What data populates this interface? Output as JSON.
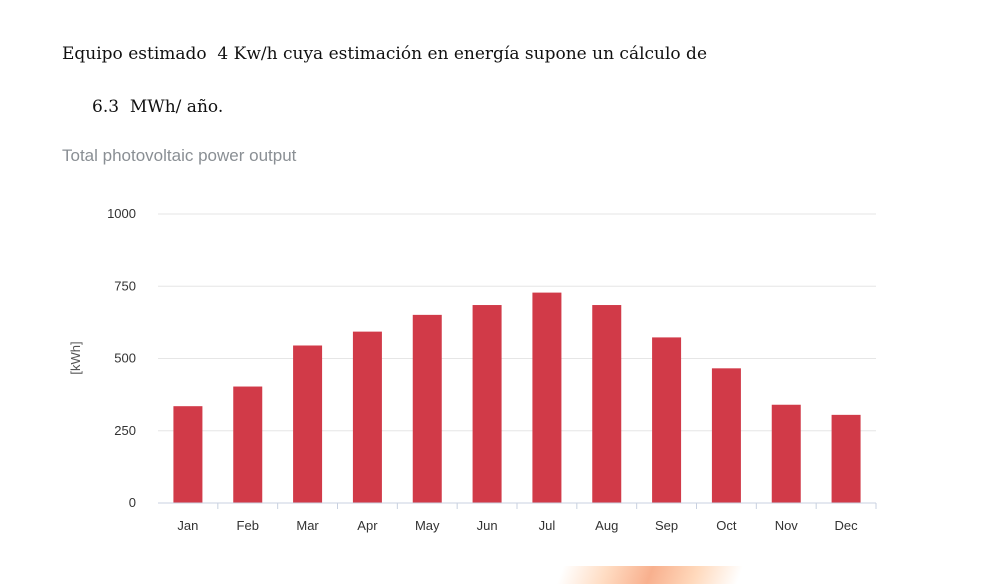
{
  "document": {
    "line1": "Equipo estimado  4 Kw/h cuya estimación en energía supone un cálculo de",
    "line2": "6.3  MWh/ año."
  },
  "chart_data": {
    "type": "bar",
    "title": "Total photovoltaic power output",
    "xlabel": "",
    "ylabel": "[kWh]",
    "categories": [
      "Jan",
      "Feb",
      "Mar",
      "Apr",
      "May",
      "Jun",
      "Jul",
      "Aug",
      "Sep",
      "Oct",
      "Nov",
      "Dec"
    ],
    "values": [
      335,
      403,
      545,
      593,
      651,
      685,
      728,
      685,
      573,
      466,
      340,
      305
    ],
    "ylim": [
      0,
      1000
    ],
    "yticks": [
      "0",
      "250",
      "500",
      "750",
      "1000"
    ],
    "grid": true,
    "bar_color": "#d13a48",
    "grid_color": "#e6e6e6",
    "axis_color": "#c8d0e0"
  }
}
